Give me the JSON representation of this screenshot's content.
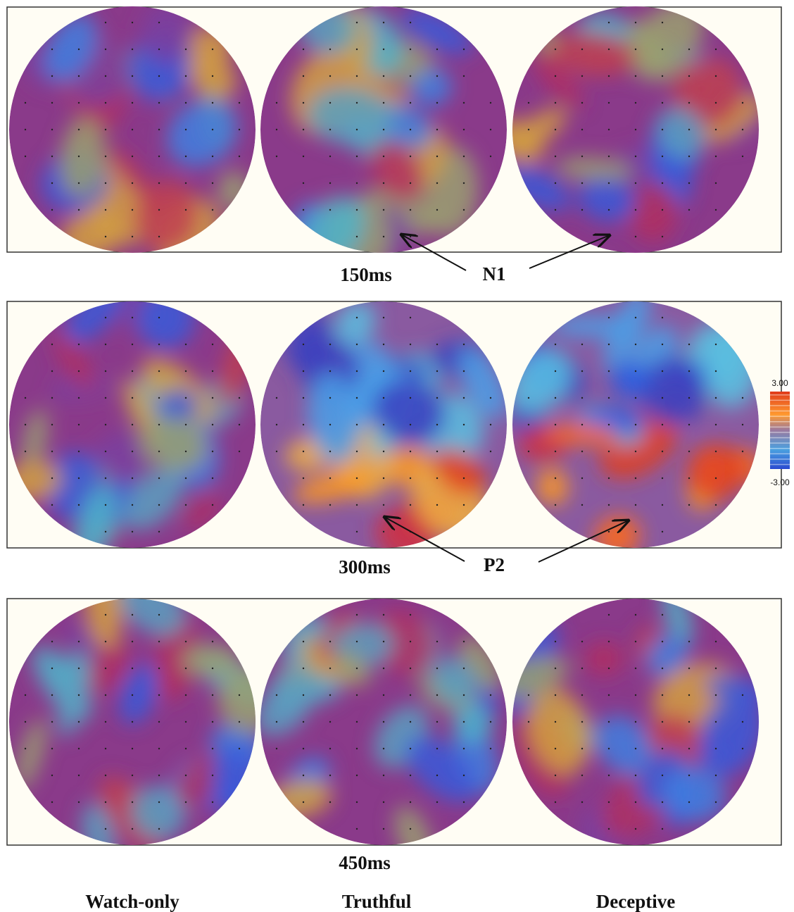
{
  "rows": [
    {
      "time": "150ms",
      "annotation": "N1"
    },
    {
      "time": "300ms",
      "annotation": "P2"
    },
    {
      "time": "450ms"
    }
  ],
  "colorbar": {
    "max_label": "3.00",
    "min_label": "-3.00"
  },
  "columns": [
    "Watch-only",
    "Truthful",
    "Deceptive"
  ]
}
